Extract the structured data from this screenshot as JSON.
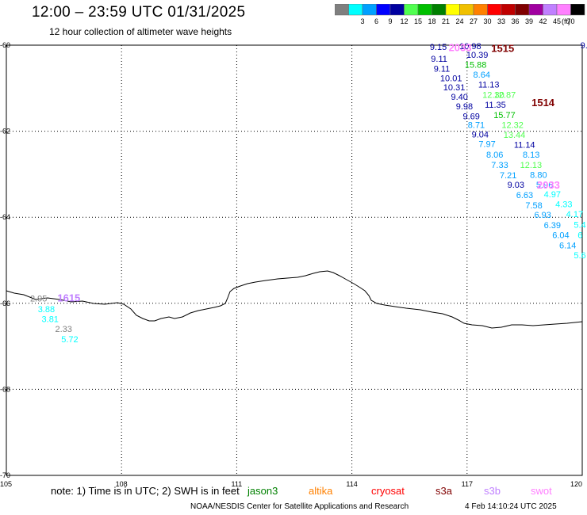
{
  "title": "12:00 – 23:59 UTC 01/31/2025",
  "subtitle": "12 hour collection of altimeter wave heights",
  "legend": {
    "unit": "(ft)",
    "swatches": [
      {
        "color": "#7f7f7f",
        "label": ""
      },
      {
        "color": "#00ffff",
        "label": "3"
      },
      {
        "color": "#00a0ff",
        "label": "6"
      },
      {
        "color": "#0000ff",
        "label": "9"
      },
      {
        "color": "#0000a0",
        "label": "12"
      },
      {
        "color": "#50ff50",
        "label": "15"
      },
      {
        "color": "#00c000",
        "label": "18"
      },
      {
        "color": "#008000",
        "label": "21"
      },
      {
        "color": "#ffff00",
        "label": "24"
      },
      {
        "color": "#f0c000",
        "label": "27"
      },
      {
        "color": "#ff8000",
        "label": "30"
      },
      {
        "color": "#ff0000",
        "label": "33"
      },
      {
        "color": "#c00000",
        "label": "36"
      },
      {
        "color": "#800000",
        "label": "39"
      },
      {
        "color": "#a000a0",
        "label": "42"
      },
      {
        "color": "#c080ff",
        "label": "45"
      },
      {
        "color": "#ff80ff",
        "label": "70"
      },
      {
        "color": "#000000",
        "label": ""
      }
    ]
  },
  "axes": {
    "lon_labels": [
      "105",
      "108",
      "111",
      "114",
      "117",
      "120"
    ],
    "lat_labels": [
      "-60",
      "-62",
      "-64",
      "-66",
      "-68",
      "-70"
    ],
    "lon_range": [
      105,
      120
    ],
    "lat_range": [
      -60,
      -70
    ]
  },
  "observations": [
    {
      "text": "9.15",
      "color": "#0000a0",
      "lon": 116.03,
      "lat": -60.04
    },
    {
      "text": "9.11",
      "color": "#0000a0",
      "lon": 116.06,
      "lat": -60.31
    },
    {
      "text": "9.11",
      "color": "#0000a0",
      "lon": 116.13,
      "lat": -60.54
    },
    {
      "text": "10.01",
      "color": "#0000a0",
      "lon": 116.3,
      "lat": -60.76
    },
    {
      "text": "10.31",
      "color": "#0000a0",
      "lon": 116.38,
      "lat": -60.98
    },
    {
      "text": "9.40",
      "color": "#0000a0",
      "lon": 116.58,
      "lat": -61.2
    },
    {
      "text": "9.98",
      "color": "#0000a0",
      "lon": 116.71,
      "lat": -61.42
    },
    {
      "text": "9.69",
      "color": "#0000a0",
      "lon": 116.89,
      "lat": -61.65
    },
    {
      "text": "8.71",
      "color": "#00a0ff",
      "lon": 117.02,
      "lat": -61.85
    },
    {
      "text": "9.04",
      "color": "#0000a0",
      "lon": 117.12,
      "lat": -62.07
    },
    {
      "text": "7.97",
      "color": "#00a0ff",
      "lon": 117.3,
      "lat": -62.29
    },
    {
      "text": "8.06",
      "color": "#00a0ff",
      "lon": 117.5,
      "lat": -62.54
    },
    {
      "text": "7.33",
      "color": "#00a0ff",
      "lon": 117.63,
      "lat": -62.78
    },
    {
      "text": "7.21",
      "color": "#00a0ff",
      "lon": 117.85,
      "lat": -63.02
    },
    {
      "text": "9.03",
      "color": "#0000a0",
      "lon": 118.05,
      "lat": -63.24
    },
    {
      "text": "6.63",
      "color": "#00a0ff",
      "lon": 118.28,
      "lat": -63.48
    },
    {
      "text": "7.58",
      "color": "#00a0ff",
      "lon": 118.52,
      "lat": -63.72
    },
    {
      "text": "6.93",
      "color": "#00a0ff",
      "lon": 118.75,
      "lat": -63.94
    },
    {
      "text": "6.39",
      "color": "#00a0ff",
      "lon": 119.0,
      "lat": -64.18
    },
    {
      "text": "6.04",
      "color": "#00a0ff",
      "lon": 119.22,
      "lat": -64.41
    },
    {
      "text": "6.14",
      "color": "#00a0ff",
      "lon": 119.4,
      "lat": -64.65
    },
    {
      "text": "5.6",
      "color": "#00ffff",
      "lon": 119.78,
      "lat": -64.88
    },
    {
      "text": "6",
      "color": "#00ffff",
      "lon": 119.88,
      "lat": -64.41
    },
    {
      "text": "5.4",
      "color": "#00ffff",
      "lon": 119.78,
      "lat": -64.17
    },
    {
      "text": "4.17",
      "color": "#00ffff",
      "lon": 119.58,
      "lat": -63.92
    },
    {
      "text": "4.33",
      "color": "#00ffff",
      "lon": 119.3,
      "lat": -63.69
    },
    {
      "text": "4.97",
      "color": "#00ffff",
      "lon": 119.0,
      "lat": -63.46
    },
    {
      "text": "5.96",
      "color": "#00a0ff",
      "lon": 118.8,
      "lat": -63.24
    },
    {
      "text": "8.80",
      "color": "#00a0ff",
      "lon": 118.64,
      "lat": -63.01
    },
    {
      "text": "12.13",
      "color": "#50ff50",
      "lon": 118.38,
      "lat": -62.78
    },
    {
      "text": "8.13",
      "color": "#00a0ff",
      "lon": 118.45,
      "lat": -62.54
    },
    {
      "text": "11.14",
      "color": "#0000a0",
      "lon": 118.22,
      "lat": -62.31
    },
    {
      "text": "13.44",
      "color": "#50ff50",
      "lon": 117.95,
      "lat": -62.08
    },
    {
      "text": "12.32",
      "color": "#50ff50",
      "lon": 117.9,
      "lat": -61.85
    },
    {
      "text": "15.77",
      "color": "#00c000",
      "lon": 117.69,
      "lat": -61.62
    },
    {
      "text": "11.35",
      "color": "#0000a0",
      "lon": 117.46,
      "lat": -61.38
    },
    {
      "text": "12.87",
      "color": "#50ff50",
      "lon": 117.7,
      "lat": -61.15
    },
    {
      "text": "12.30",
      "color": "#50ff50",
      "lon": 117.4,
      "lat": -61.15
    },
    {
      "text": "11.13",
      "color": "#0000a0",
      "lon": 117.29,
      "lat": -60.91
    },
    {
      "text": "8.64",
      "color": "#00a0ff",
      "lon": 117.16,
      "lat": -60.68
    },
    {
      "text": "15.88",
      "color": "#00c000",
      "lon": 116.94,
      "lat": -60.45
    },
    {
      "text": "10.39",
      "color": "#0000a0",
      "lon": 116.98,
      "lat": -60.22
    },
    {
      "text": "10.98",
      "color": "#0000a0",
      "lon": 116.8,
      "lat": -60.02
    },
    {
      "text": "9.",
      "color": "#0000a0",
      "lon": 119.95,
      "lat": -60.0
    },
    {
      "text": "2.95",
      "color": "#7f7f7f",
      "lon": 105.62,
      "lat": -65.88
    },
    {
      "text": "3.88",
      "color": "#00ffff",
      "lon": 105.82,
      "lat": -66.13
    },
    {
      "text": "3.81",
      "color": "#00ffff",
      "lon": 105.92,
      "lat": -66.36
    },
    {
      "text": "2.33",
      "color": "#7f7f7f",
      "lon": 106.27,
      "lat": -66.59
    },
    {
      "text": "5.72",
      "color": "#00ffff",
      "lon": 106.43,
      "lat": -66.83
    }
  ],
  "pass_labels": [
    {
      "text": "2033",
      "color": "#ff80ff",
      "lon": 116.52,
      "lat": -60.05
    },
    {
      "text": "1515",
      "color": "#800000",
      "lon": 117.63,
      "lat": -60.06
    },
    {
      "text": "1514",
      "color": "#800000",
      "lon": 118.68,
      "lat": -61.33
    },
    {
      "text": "2033",
      "color": "#ff80ff",
      "lon": 118.82,
      "lat": -63.24
    },
    {
      "text": "1615",
      "color": "#c080ff",
      "lon": 106.33,
      "lat": -65.87
    }
  ],
  "note": "note: 1) Time is in UTC; 2) SWH is in feet",
  "satellites": [
    {
      "name": "jason3",
      "color": "#008000"
    },
    {
      "name": "altika",
      "color": "#ff8000"
    },
    {
      "name": "cryosat",
      "color": "#ff0000"
    },
    {
      "name": "s3a",
      "color": "#800000"
    },
    {
      "name": "s3b",
      "color": "#c080ff"
    },
    {
      "name": "swot",
      "color": "#ff80ff"
    }
  ],
  "credit": "NOAA/NESDIS Center for Satellite Applications and Research",
  "timestamp": "4 Feb 14:10:24 UTC 2025"
}
